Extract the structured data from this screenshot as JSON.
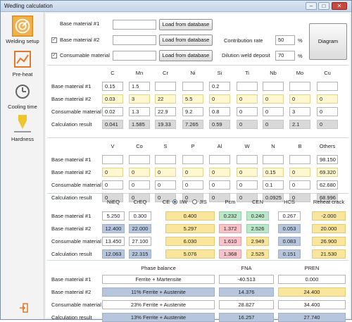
{
  "window": {
    "title": "Wedling calculation"
  },
  "sidebar": [
    {
      "key": "welding_setup",
      "label": "Welding setup",
      "icon": "target-icon"
    },
    {
      "key": "preheat",
      "label": "Pre-heat",
      "icon": "chart-icon"
    },
    {
      "key": "cooling",
      "label": "Cooling time",
      "icon": "clock-icon"
    },
    {
      "key": "hardness",
      "label": "Hardness",
      "icon": "hardness-icon"
    }
  ],
  "exit_icon": "exit-icon",
  "setup": {
    "base1_label": "Base material #1",
    "base2_label": "Base material #2",
    "consumable_label": "Consumable material",
    "load_btn": "Load from database",
    "contribution_label": "Contribution rate",
    "contribution_value": "50",
    "dilution_label": "Dilution weld deposit",
    "dilution_value": "70",
    "unit": "%",
    "diagram_btn": "Diagram"
  },
  "rows": [
    "Base material #1",
    "Base material #2",
    "Consumable material",
    "Calculation result"
  ],
  "table1": {
    "cols": [
      "C",
      "Mn",
      "Cr",
      "Ni",
      "Si",
      "Ti",
      "Nb",
      "Mo",
      "Cu"
    ],
    "data": [
      [
        "0.15",
        "1.5",
        "",
        "",
        "0.2",
        "",
        "",
        "",
        ""
      ],
      [
        "0.03",
        "3",
        "22",
        "5.5",
        "0",
        "0",
        "0",
        "0",
        "0"
      ],
      [
        "0.02",
        "1.3",
        "22.9",
        "9.2",
        "0.8",
        "0",
        "0",
        "3",
        "0"
      ],
      [
        "0.041",
        "1.585",
        "19.33",
        "7.265",
        "0.59",
        "0",
        "0",
        "2.1",
        "0"
      ]
    ]
  },
  "table2": {
    "cols": [
      "V",
      "Co",
      "S",
      "P",
      "Al",
      "W",
      "N",
      "B",
      "Others"
    ],
    "data": [
      [
        "",
        "",
        "",
        "",
        "",
        "",
        "",
        "",
        "98.150"
      ],
      [
        "0",
        "0",
        "0",
        "0",
        "0",
        "0",
        "0.15",
        "0",
        "69.320"
      ],
      [
        "0",
        "0",
        "0",
        "0",
        "0",
        "0",
        "0.1",
        "0",
        "62.680"
      ],
      [
        "0",
        "0",
        "0",
        "0",
        "0",
        "0",
        "0.0925",
        "0",
        "68.996"
      ]
    ]
  },
  "table3": {
    "cols": [
      "NiEQ",
      "CrEQ",
      "CE",
      "Pcm",
      "CEN",
      "HCS",
      "Reheat crack"
    ],
    "ce_iiw": "IIW",
    "ce_jis": "JIS",
    "data": [
      [
        "5.250",
        "0.300",
        "0.400",
        "0.232",
        "0.240",
        "0.267",
        "-2.000"
      ],
      [
        "12.400",
        "22.000",
        "5.297",
        "1.372",
        "2.526",
        "0.053",
        "20.000"
      ],
      [
        "13.450",
        "27.100",
        "6.030",
        "1.610",
        "2.949",
        "0.083",
        "26.900"
      ],
      [
        "12.063",
        "22.315",
        "5.076",
        "1.368",
        "2.525",
        "0.151",
        "21.530"
      ]
    ]
  },
  "table4": {
    "cols": [
      "Phase balance",
      "FNA",
      "PREN"
    ],
    "data": [
      [
        "Ferrite + Martensite",
        "-40.513",
        "0.000"
      ],
      [
        "11% Ferrite + Austenite",
        "14.376",
        "24.400"
      ],
      [
        "23% Ferrite + Austenite",
        "28.827",
        "34.400"
      ],
      [
        "13% Ferrite + Austenite",
        "16.257",
        "27.740"
      ]
    ]
  },
  "colors": {
    "accent": "#f3b14b",
    "blue_cell": "#b7c6dd",
    "yellow_cell": "#fff7cf",
    "green_cell": "#b9e7c7",
    "pink_cell": "#f6c3c8",
    "orange_cell": "#f9e59b"
  }
}
